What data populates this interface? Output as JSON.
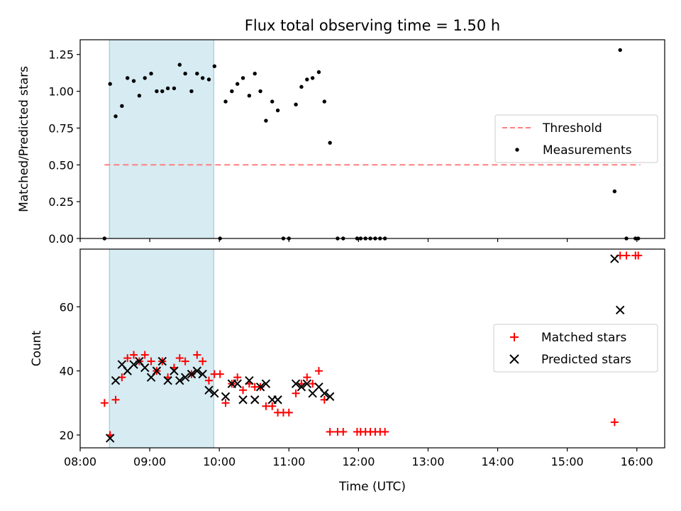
{
  "title": "Flux total observing time = 1.50 h",
  "colors": {
    "threshold": "#ff8080",
    "measurement": "#000000",
    "matched": "#ff0000",
    "predicted": "#000000",
    "span": "#add8e6"
  },
  "chart_data": [
    {
      "type": "scatter",
      "title": "Flux total observing time = 1.50 h",
      "xlabel": "",
      "ylabel": "Matched/Predicted stars",
      "xlim": [
        8.0,
        16.4
      ],
      "ylim": [
        0.0,
        1.35
      ],
      "x_ticks": [
        8,
        9,
        10,
        11,
        12,
        13,
        14,
        15,
        16
      ],
      "y_ticks": [
        0.0,
        0.25,
        0.5,
        0.75,
        1.0,
        1.25
      ],
      "y_tick_labels": [
        "0.00",
        "0.25",
        "0.50",
        "0.75",
        "1.00",
        "1.25"
      ],
      "span": [
        8.42,
        9.92
      ],
      "legend": "center-right",
      "series": [
        {
          "name": "Threshold",
          "style": "dashed-line",
          "x": [
            8.35,
            16.05
          ],
          "y": [
            0.5,
            0.5
          ]
        },
        {
          "name": "Measurements",
          "style": "dot",
          "x": [
            8.35,
            8.43,
            8.51,
            8.6,
            8.68,
            8.77,
            8.85,
            8.93,
            9.02,
            9.1,
            9.18,
            9.26,
            9.35,
            9.43,
            9.51,
            9.6,
            9.68,
            9.76,
            9.85,
            9.93,
            10.01,
            10.09,
            10.18,
            10.26,
            10.34,
            10.43,
            10.51,
            10.59,
            10.67,
            10.76,
            10.84,
            10.92,
            11.0,
            11.1,
            11.18,
            11.26,
            11.34,
            11.43,
            11.51,
            11.59,
            11.7,
            11.78,
            11.98,
            12.03,
            12.1,
            12.17,
            12.24,
            12.31,
            12.38,
            15.68,
            15.76,
            15.85,
            15.98,
            16.02
          ],
          "y": [
            0.0,
            1.05,
            0.83,
            0.9,
            1.09,
            1.07,
            0.97,
            1.09,
            1.12,
            1.0,
            1.0,
            1.02,
            1.02,
            1.18,
            1.12,
            1.0,
            1.12,
            1.09,
            1.08,
            1.17,
            0.0,
            0.93,
            1.0,
            1.05,
            1.09,
            0.97,
            1.12,
            1.0,
            0.8,
            0.93,
            0.87,
            0.0,
            0.0,
            0.91,
            1.03,
            1.08,
            1.09,
            1.13,
            0.93,
            0.65,
            0.0,
            0.0,
            0.0,
            0.0,
            0.0,
            0.0,
            0.0,
            0.0,
            0.0,
            0.32,
            1.28,
            0.0,
            0.0,
            0.0
          ]
        }
      ]
    },
    {
      "type": "scatter",
      "title": "",
      "xlabel": "Time (UTC)",
      "ylabel": "Count",
      "xlim": [
        8.0,
        16.4
      ],
      "ylim": [
        16,
        78
      ],
      "x_ticks": [
        8,
        9,
        10,
        11,
        12,
        13,
        14,
        15,
        16
      ],
      "x_tick_labels": [
        "08:00",
        "09:00",
        "10:00",
        "11:00",
        "12:00",
        "13:00",
        "14:00",
        "15:00",
        "16:00"
      ],
      "y_ticks": [
        20,
        40,
        60
      ],
      "y_tick_labels": [
        "20",
        "40",
        "60"
      ],
      "span": [
        8.42,
        9.92
      ],
      "legend": "center-right",
      "series": [
        {
          "name": "Matched stars",
          "style": "plus",
          "x": [
            8.35,
            8.43,
            8.51,
            8.6,
            8.68,
            8.77,
            8.85,
            8.93,
            9.02,
            9.1,
            9.18,
            9.26,
            9.35,
            9.43,
            9.51,
            9.6,
            9.68,
            9.76,
            9.85,
            9.93,
            10.01,
            10.09,
            10.18,
            10.26,
            10.34,
            10.43,
            10.51,
            10.59,
            10.67,
            10.76,
            10.84,
            10.92,
            11.0,
            11.1,
            11.18,
            11.26,
            11.34,
            11.43,
            11.51,
            11.59,
            11.7,
            11.78,
            11.98,
            12.03,
            12.1,
            12.17,
            12.24,
            12.31,
            12.38,
            15.68,
            15.76,
            15.85,
            15.98,
            16.02
          ],
          "y": [
            30,
            20,
            31,
            38,
            44,
            45,
            43,
            45,
            43,
            40,
            43,
            38,
            41,
            44,
            43,
            39,
            45,
            43,
            37,
            39,
            39,
            30,
            36,
            38,
            34,
            36,
            35,
            35,
            29,
            29,
            27,
            27,
            27,
            33,
            36,
            38,
            36,
            40,
            31,
            21,
            21,
            21,
            21,
            21,
            21,
            21,
            21,
            21,
            21,
            24,
            76,
            76,
            76,
            76
          ]
        },
        {
          "name": "Predicted stars",
          "style": "x",
          "x": [
            8.43,
            8.51,
            8.6,
            8.68,
            8.77,
            8.85,
            8.93,
            9.02,
            9.1,
            9.18,
            9.26,
            9.35,
            9.43,
            9.51,
            9.6,
            9.68,
            9.76,
            9.85,
            9.93,
            10.09,
            10.18,
            10.26,
            10.34,
            10.43,
            10.51,
            10.59,
            10.67,
            10.76,
            10.84,
            11.1,
            11.18,
            11.26,
            11.34,
            11.43,
            11.51,
            11.59,
            15.68,
            15.76
          ],
          "y": [
            19,
            37,
            42,
            40,
            42,
            43,
            41,
            38,
            40,
            43,
            37,
            40,
            37,
            38,
            39,
            40,
            39,
            34,
            33,
            32,
            36,
            36,
            31,
            37,
            31,
            35,
            36,
            31,
            31,
            36,
            35,
            36,
            33,
            35,
            33,
            32,
            75,
            59
          ]
        }
      ]
    }
  ]
}
